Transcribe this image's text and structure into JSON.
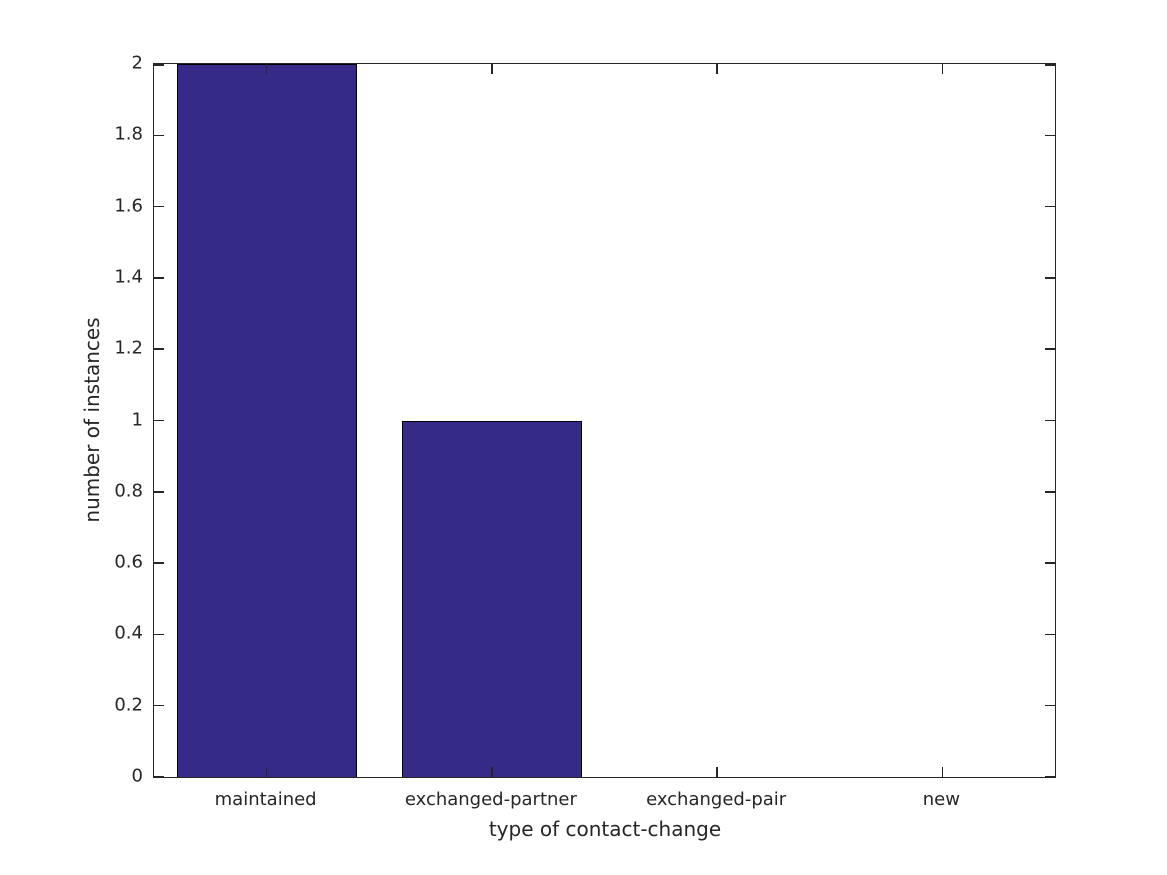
{
  "figure": {
    "background_color": "#ffffff",
    "axis_color": "#262626",
    "text_color": "#262626"
  },
  "chart_data": {
    "type": "bar",
    "title": "",
    "xlabel": "type of contact-change",
    "ylabel": "number of instances",
    "categories": [
      "maintained",
      "exchanged-partner",
      "exchanged-pair",
      "new"
    ],
    "values": [
      2,
      1,
      0,
      0
    ],
    "ylim": [
      0,
      2
    ],
    "yticks": [
      0,
      0.2,
      0.4,
      0.6,
      0.8,
      1,
      1.2,
      1.4,
      1.6,
      1.8,
      2
    ],
    "ytick_labels": [
      "0",
      "0.2",
      "0.4",
      "0.6",
      "0.8",
      "1",
      "1.2",
      "1.4",
      "1.6",
      "1.8",
      "2"
    ],
    "bar_color": "#352A87",
    "bar_edge_color": "#000000",
    "bar_width_fraction": 0.8,
    "grid": false,
    "legend_position": "none",
    "box": true,
    "tick_direction": "in"
  }
}
